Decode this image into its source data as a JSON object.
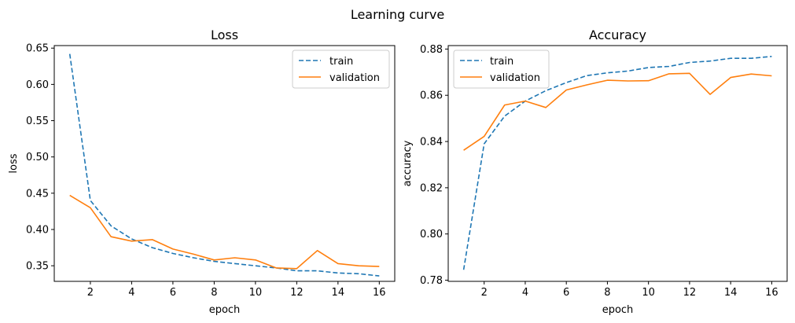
{
  "figure": {
    "title": "Learning curve"
  },
  "colors": {
    "train": "#1f77b4",
    "validation": "#ff7f0e"
  },
  "chart_data": [
    {
      "type": "line",
      "title": "Loss",
      "xlabel": "epoch",
      "ylabel": "loss",
      "xlim": [
        0.25,
        16.75
      ],
      "ylim": [
        0.3285,
        0.6535
      ],
      "xticks": [
        2,
        4,
        6,
        8,
        10,
        12,
        14,
        16
      ],
      "yticks": [
        0.35,
        0.4,
        0.45,
        0.5,
        0.55,
        0.6,
        0.65
      ],
      "ytick_labels": [
        "0.35",
        "0.40",
        "0.45",
        "0.50",
        "0.55",
        "0.60",
        "0.65"
      ],
      "legend_position": "upper right",
      "grid": false,
      "x": [
        1,
        2,
        3,
        4,
        5,
        6,
        7,
        8,
        9,
        10,
        11,
        12,
        13,
        14,
        15,
        16
      ],
      "series": [
        {
          "name": "train",
          "style": "dashed",
          "values": [
            0.642,
            0.44,
            0.405,
            0.387,
            0.375,
            0.367,
            0.361,
            0.356,
            0.353,
            0.35,
            0.347,
            0.343,
            0.343,
            0.34,
            0.339,
            0.336
          ]
        },
        {
          "name": "validation",
          "style": "solid",
          "values": [
            0.447,
            0.43,
            0.39,
            0.384,
            0.386,
            0.373,
            0.366,
            0.358,
            0.361,
            0.358,
            0.347,
            0.346,
            0.371,
            0.353,
            0.35,
            0.349
          ]
        }
      ]
    },
    {
      "type": "line",
      "title": "Accuracy",
      "xlabel": "epoch",
      "ylabel": "accuracy",
      "xlim": [
        0.25,
        16.75
      ],
      "ylim": [
        0.7795,
        0.8815
      ],
      "xticks": [
        2,
        4,
        6,
        8,
        10,
        12,
        14,
        16
      ],
      "yticks": [
        0.78,
        0.8,
        0.82,
        0.84,
        0.86,
        0.88
      ],
      "ytick_labels": [
        "0.78",
        "0.80",
        "0.82",
        "0.84",
        "0.86",
        "0.88"
      ],
      "legend_position": "upper left",
      "grid": false,
      "x": [
        1,
        2,
        3,
        4,
        5,
        6,
        7,
        8,
        9,
        10,
        11,
        12,
        13,
        14,
        15,
        16
      ],
      "series": [
        {
          "name": "train",
          "style": "dashed",
          "values": [
            0.7845,
            0.839,
            0.851,
            0.8575,
            0.862,
            0.8655,
            0.8685,
            0.8697,
            0.8705,
            0.872,
            0.8725,
            0.8742,
            0.8748,
            0.876,
            0.876,
            0.8768
          ]
        },
        {
          "name": "validation",
          "style": "solid",
          "values": [
            0.8362,
            0.8422,
            0.8558,
            0.8575,
            0.8547,
            0.8623,
            0.8645,
            0.8665,
            0.8662,
            0.8663,
            0.8693,
            0.8695,
            0.8604,
            0.8677,
            0.8692,
            0.8684
          ]
        }
      ]
    }
  ]
}
